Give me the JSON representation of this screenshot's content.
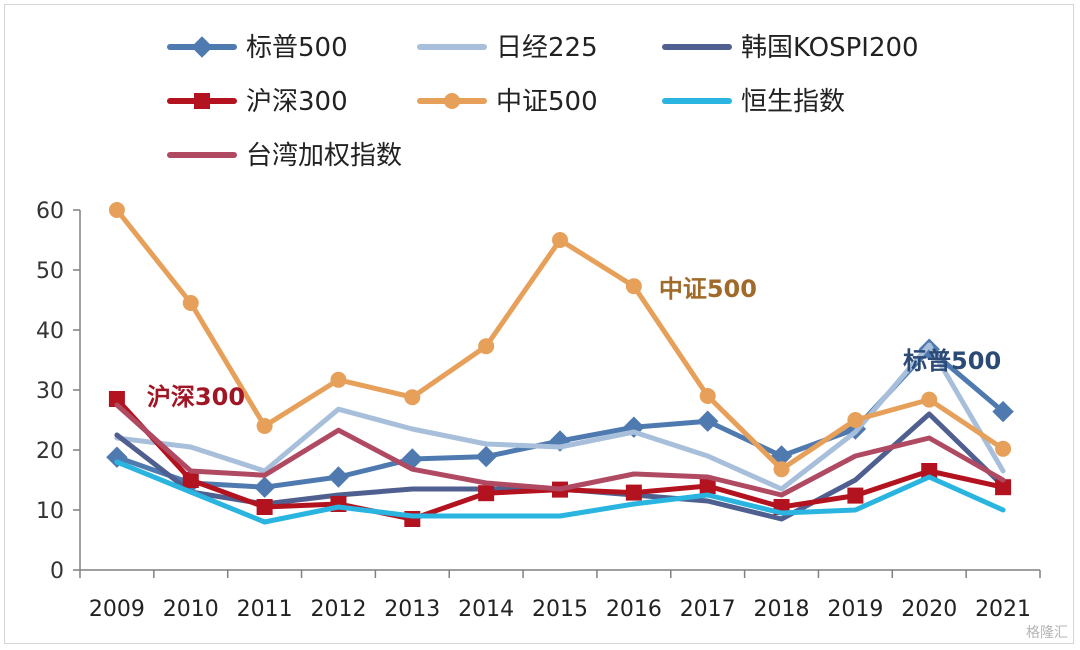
{
  "chart_data": {
    "type": "line",
    "x": [
      "2009",
      "2010",
      "2011",
      "2012",
      "2013",
      "2014",
      "2015",
      "2016",
      "2017",
      "2018",
      "2019",
      "2020",
      "2021"
    ],
    "yticks": [
      0,
      10,
      20,
      30,
      40,
      50,
      60
    ],
    "ylim": [
      0,
      60
    ],
    "grid": false,
    "legend_position": "top",
    "series": [
      {
        "name": "标普500",
        "color": "#4f7ab0",
        "marker": "diamond",
        "values": [
          18.8,
          14.5,
          13.8,
          15.5,
          18.5,
          18.9,
          21.5,
          23.8,
          24.8,
          19.0,
          23.5,
          36.8,
          26.4
        ]
      },
      {
        "name": "日经225",
        "color": "#a8bfdc",
        "marker": "none",
        "values": [
          22.0,
          20.5,
          16.5,
          26.8,
          23.5,
          21.0,
          20.5,
          23.0,
          19.0,
          13.5,
          23.0,
          37.5,
          16.5
        ]
      },
      {
        "name": "韩国KOSPI200",
        "color": "#4f5f8f",
        "marker": "none",
        "values": [
          22.5,
          13.0,
          11.0,
          12.5,
          13.5,
          13.5,
          13.5,
          12.5,
          11.5,
          8.5,
          15.0,
          26.0,
          14.0
        ]
      },
      {
        "name": "沪深300",
        "color": "#b3121f",
        "marker": "square",
        "values": [
          28.5,
          15.0,
          10.5,
          11.0,
          8.5,
          12.8,
          13.4,
          12.9,
          14.0,
          10.5,
          12.4,
          16.5,
          13.8
        ]
      },
      {
        "name": "中证500",
        "color": "#e6a05a",
        "marker": "circle",
        "values": [
          60.0,
          44.5,
          24.0,
          31.7,
          28.8,
          37.3,
          55.0,
          47.3,
          29.0,
          16.8,
          25.0,
          28.4,
          20.2
        ]
      },
      {
        "name": "恒生指数",
        "color": "#2ab4e0",
        "marker": "none",
        "values": [
          18.0,
          13.0,
          8.0,
          10.5,
          9.0,
          9.0,
          9.0,
          11.0,
          12.5,
          9.5,
          10.0,
          15.5,
          10.0
        ]
      },
      {
        "name": "台湾加权指数",
        "color": "#b04a62",
        "marker": "none",
        "values": [
          27.5,
          16.5,
          15.8,
          23.3,
          16.8,
          14.5,
          13.5,
          16.0,
          15.5,
          12.5,
          19.0,
          22.0,
          15.0
        ]
      }
    ],
    "annotations": [
      {
        "text": "中证500",
        "series": "中证500",
        "x": "2017",
        "y": 47,
        "color": "#a06a2a"
      },
      {
        "text": "沪深300",
        "series": "沪深300",
        "x": "2010",
        "y": 29,
        "color": "#a01624"
      },
      {
        "text": "标普500",
        "series": "标普500",
        "x": "2021",
        "y": 35,
        "color": "#2b4a75"
      }
    ]
  },
  "watermark": "格隆汇"
}
